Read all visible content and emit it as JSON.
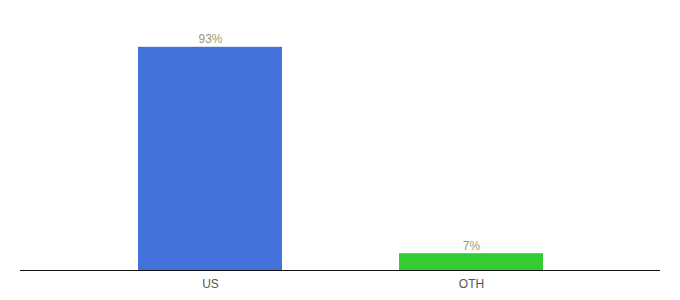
{
  "chart_data": {
    "type": "bar",
    "categories": [
      "US",
      "OTH"
    ],
    "values": [
      93,
      7
    ],
    "value_labels": [
      "93%",
      "7%"
    ],
    "colors": [
      "#4472db",
      "#33cc33"
    ],
    "ylim": [
      0,
      100
    ],
    "data_labels": true,
    "tick_labels": "x"
  }
}
